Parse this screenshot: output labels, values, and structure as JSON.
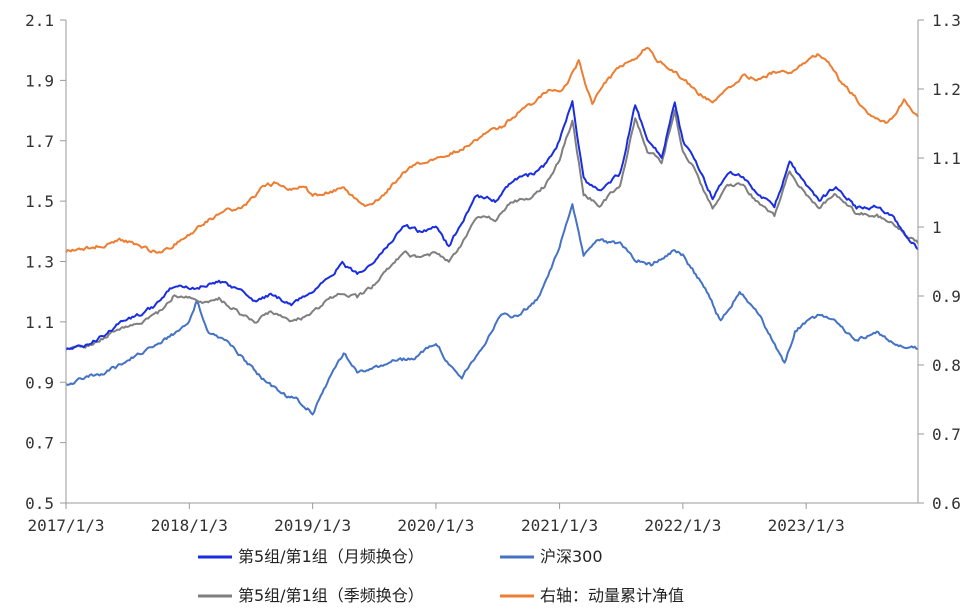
{
  "chart_data": {
    "type": "line",
    "x_ticks": [
      "2017/1/3",
      "2018/1/3",
      "2019/1/3",
      "2020/1/3",
      "2021/1/3",
      "2022/1/3",
      "2023/1/3"
    ],
    "x_range": [
      "2017/1/3",
      "2023/11/30"
    ],
    "y_left": {
      "range": [
        0.5,
        2.1
      ],
      "ticks": [
        "0.5",
        "0.7",
        "0.9",
        "1.1",
        "1.3",
        "1.5",
        "1.7",
        "1.9",
        "2.1"
      ]
    },
    "y_right": {
      "range": [
        0.6,
        1.3
      ],
      "ticks": [
        "0.6",
        "0.7",
        "0.8",
        "0.9",
        "1",
        "1.1",
        "1.2",
        "1.3"
      ]
    },
    "grid": false,
    "legend_position": "bottom",
    "series": [
      {
        "name": "第5组/第1组（月频换仓）",
        "axis": "left",
        "color": "#1a2ee0",
        "points": [
          [
            "2017-01-03",
            1.01
          ],
          [
            "2017-03-01",
            1.02
          ],
          [
            "2017-05-01",
            1.06
          ],
          [
            "2017-06-15",
            1.1
          ],
          [
            "2017-08-01",
            1.12
          ],
          [
            "2017-10-01",
            1.16
          ],
          [
            "2017-11-20",
            1.22
          ],
          [
            "2018-01-03",
            1.21
          ],
          [
            "2018-02-15",
            1.22
          ],
          [
            "2018-04-01",
            1.23
          ],
          [
            "2018-06-01",
            1.21
          ],
          [
            "2018-07-15",
            1.17
          ],
          [
            "2018-09-01",
            1.19
          ],
          [
            "2018-11-01",
            1.16
          ],
          [
            "2019-01-03",
            1.2
          ],
          [
            "2019-02-15",
            1.25
          ],
          [
            "2019-04-01",
            1.29
          ],
          [
            "2019-05-15",
            1.26
          ],
          [
            "2019-07-01",
            1.3
          ],
          [
            "2019-08-20",
            1.36
          ],
          [
            "2019-10-01",
            1.42
          ],
          [
            "2019-11-15",
            1.4
          ],
          [
            "2020-01-03",
            1.41
          ],
          [
            "2020-02-10",
            1.35
          ],
          [
            "2020-03-20",
            1.43
          ],
          [
            "2020-05-01",
            1.52
          ],
          [
            "2020-07-01",
            1.5
          ],
          [
            "2020-08-15",
            1.57
          ],
          [
            "2020-10-01",
            1.58
          ],
          [
            "2020-11-20",
            1.62
          ],
          [
            "2021-01-03",
            1.7
          ],
          [
            "2021-02-10",
            1.83
          ],
          [
            "2021-03-15",
            1.57
          ],
          [
            "2021-05-01",
            1.53
          ],
          [
            "2021-07-01",
            1.59
          ],
          [
            "2021-08-15",
            1.82
          ],
          [
            "2021-09-20",
            1.7
          ],
          [
            "2021-11-01",
            1.65
          ],
          [
            "2021-12-10",
            1.83
          ],
          [
            "2022-01-03",
            1.7
          ],
          [
            "2022-02-15",
            1.62
          ],
          [
            "2022-04-01",
            1.51
          ],
          [
            "2022-05-15",
            1.6
          ],
          [
            "2022-07-01",
            1.58
          ],
          [
            "2022-08-15",
            1.52
          ],
          [
            "2022-10-01",
            1.48
          ],
          [
            "2022-11-15",
            1.63
          ],
          [
            "2023-01-03",
            1.55
          ],
          [
            "2023-02-10",
            1.5
          ],
          [
            "2023-04-01",
            1.55
          ],
          [
            "2023-06-01",
            1.48
          ],
          [
            "2023-08-01",
            1.48
          ],
          [
            "2023-09-15",
            1.45
          ],
          [
            "2023-11-01",
            1.38
          ],
          [
            "2023-11-30",
            1.34
          ]
        ]
      },
      {
        "name": "沪深300",
        "axis": "left",
        "color": "#4472c4",
        "points": [
          [
            "2017-01-03",
            0.89
          ],
          [
            "2017-03-01",
            0.92
          ],
          [
            "2017-05-01",
            0.93
          ],
          [
            "2017-07-01",
            0.97
          ],
          [
            "2017-09-01",
            1.01
          ],
          [
            "2017-11-20",
            1.06
          ],
          [
            "2018-01-03",
            1.1
          ],
          [
            "2018-01-25",
            1.17
          ],
          [
            "2018-03-01",
            1.06
          ],
          [
            "2018-05-01",
            1.03
          ],
          [
            "2018-06-20",
            0.97
          ],
          [
            "2018-08-01",
            0.92
          ],
          [
            "2018-10-01",
            0.86
          ],
          [
            "2018-11-20",
            0.84
          ],
          [
            "2019-01-03",
            0.8
          ],
          [
            "2019-02-15",
            0.9
          ],
          [
            "2019-04-05",
            1.0
          ],
          [
            "2019-05-15",
            0.93
          ],
          [
            "2019-07-01",
            0.95
          ],
          [
            "2019-09-01",
            0.97
          ],
          [
            "2019-11-01",
            0.98
          ],
          [
            "2020-01-03",
            1.03
          ],
          [
            "2020-02-05",
            0.97
          ],
          [
            "2020-03-20",
            0.92
          ],
          [
            "2020-05-01",
            0.98
          ],
          [
            "2020-07-10",
            1.12
          ],
          [
            "2020-09-01",
            1.12
          ],
          [
            "2020-11-01",
            1.18
          ],
          [
            "2021-01-03",
            1.35
          ],
          [
            "2021-02-10",
            1.49
          ],
          [
            "2021-03-15",
            1.32
          ],
          [
            "2021-05-01",
            1.37
          ],
          [
            "2021-07-01",
            1.36
          ],
          [
            "2021-08-15",
            1.31
          ],
          [
            "2021-10-01",
            1.29
          ],
          [
            "2021-12-10",
            1.34
          ],
          [
            "2022-01-03",
            1.32
          ],
          [
            "2022-03-15",
            1.2
          ],
          [
            "2022-04-25",
            1.1
          ],
          [
            "2022-06-20",
            1.2
          ],
          [
            "2022-08-15",
            1.13
          ],
          [
            "2022-10-31",
            0.96
          ],
          [
            "2022-12-01",
            1.07
          ],
          [
            "2023-01-03",
            1.1
          ],
          [
            "2023-02-10",
            1.12
          ],
          [
            "2023-04-01",
            1.1
          ],
          [
            "2023-06-01",
            1.04
          ],
          [
            "2023-07-31",
            1.07
          ],
          [
            "2023-09-15",
            1.03
          ],
          [
            "2023-11-30",
            1.01
          ]
        ]
      },
      {
        "name": "第5组/第1组（季频换仓）",
        "axis": "left",
        "color": "#7f7f7f",
        "points": [
          [
            "2017-01-03",
            1.01
          ],
          [
            "2017-03-01",
            1.02
          ],
          [
            "2017-05-01",
            1.05
          ],
          [
            "2017-06-15",
            1.08
          ],
          [
            "2017-08-01",
            1.09
          ],
          [
            "2017-10-01",
            1.13
          ],
          [
            "2017-11-20",
            1.19
          ],
          [
            "2018-01-03",
            1.18
          ],
          [
            "2018-02-15",
            1.16
          ],
          [
            "2018-04-01",
            1.18
          ],
          [
            "2018-06-01",
            1.13
          ],
          [
            "2018-07-15",
            1.1
          ],
          [
            "2018-09-01",
            1.13
          ],
          [
            "2018-11-01",
            1.1
          ],
          [
            "2019-01-03",
            1.13
          ],
          [
            "2019-02-15",
            1.17
          ],
          [
            "2019-04-01",
            1.2
          ],
          [
            "2019-05-15",
            1.18
          ],
          [
            "2019-07-01",
            1.22
          ],
          [
            "2019-08-20",
            1.28
          ],
          [
            "2019-10-01",
            1.33
          ],
          [
            "2019-11-15",
            1.31
          ],
          [
            "2020-01-03",
            1.33
          ],
          [
            "2020-02-10",
            1.3
          ],
          [
            "2020-03-20",
            1.36
          ],
          [
            "2020-05-01",
            1.45
          ],
          [
            "2020-07-01",
            1.44
          ],
          [
            "2020-08-15",
            1.5
          ],
          [
            "2020-10-01",
            1.51
          ],
          [
            "2020-11-20",
            1.55
          ],
          [
            "2021-01-03",
            1.64
          ],
          [
            "2021-02-10",
            1.77
          ],
          [
            "2021-03-15",
            1.52
          ],
          [
            "2021-05-01",
            1.49
          ],
          [
            "2021-07-01",
            1.55
          ],
          [
            "2021-08-15",
            1.78
          ],
          [
            "2021-09-20",
            1.67
          ],
          [
            "2021-11-01",
            1.63
          ],
          [
            "2021-12-10",
            1.8
          ],
          [
            "2022-01-03",
            1.67
          ],
          [
            "2022-02-15",
            1.59
          ],
          [
            "2022-04-01",
            1.47
          ],
          [
            "2022-05-15",
            1.56
          ],
          [
            "2022-07-01",
            1.55
          ],
          [
            "2022-08-15",
            1.49
          ],
          [
            "2022-10-01",
            1.45
          ],
          [
            "2022-11-15",
            1.6
          ],
          [
            "2023-01-03",
            1.52
          ],
          [
            "2023-02-10",
            1.48
          ],
          [
            "2023-04-01",
            1.52
          ],
          [
            "2023-06-01",
            1.46
          ],
          [
            "2023-08-01",
            1.45
          ],
          [
            "2023-09-15",
            1.43
          ],
          [
            "2023-11-01",
            1.38
          ],
          [
            "2023-11-30",
            1.36
          ]
        ]
      },
      {
        "name": "右轴：动量累计净值",
        "axis": "right",
        "color": "#ed7d31",
        "points": [
          [
            "2017-01-03",
            0.965
          ],
          [
            "2017-03-01",
            0.97
          ],
          [
            "2017-05-01",
            0.975
          ],
          [
            "2017-06-15",
            0.98
          ],
          [
            "2017-08-01",
            0.975
          ],
          [
            "2017-10-01",
            0.963
          ],
          [
            "2017-11-20",
            0.975
          ],
          [
            "2018-01-03",
            0.99
          ],
          [
            "2018-03-01",
            1.01
          ],
          [
            "2018-05-01",
            1.025
          ],
          [
            "2018-06-20",
            1.03
          ],
          [
            "2018-08-01",
            1.055
          ],
          [
            "2018-09-20",
            1.065
          ],
          [
            "2018-11-01",
            1.055
          ],
          [
            "2018-12-10",
            1.06
          ],
          [
            "2019-01-03",
            1.045
          ],
          [
            "2019-02-20",
            1.05
          ],
          [
            "2019-04-01",
            1.058
          ],
          [
            "2019-05-15",
            1.04
          ],
          [
            "2019-06-20",
            1.03
          ],
          [
            "2019-08-01",
            1.045
          ],
          [
            "2019-09-20",
            1.075
          ],
          [
            "2019-11-01",
            1.09
          ],
          [
            "2020-01-03",
            1.1
          ],
          [
            "2020-03-01",
            1.11
          ],
          [
            "2020-04-15",
            1.12
          ],
          [
            "2020-06-01",
            1.135
          ],
          [
            "2020-07-15",
            1.145
          ],
          [
            "2020-09-01",
            1.165
          ],
          [
            "2020-10-20",
            1.18
          ],
          [
            "2020-12-01",
            1.2
          ],
          [
            "2021-01-03",
            1.195
          ],
          [
            "2021-02-01",
            1.215
          ],
          [
            "2021-03-01",
            1.24
          ],
          [
            "2021-03-20",
            1.21
          ],
          [
            "2021-04-10",
            1.18
          ],
          [
            "2021-05-15",
            1.21
          ],
          [
            "2021-07-01",
            1.23
          ],
          [
            "2021-08-15",
            1.245
          ],
          [
            "2021-09-20",
            1.26
          ],
          [
            "2021-10-20",
            1.24
          ],
          [
            "2021-12-01",
            1.23
          ],
          [
            "2022-01-03",
            1.215
          ],
          [
            "2022-02-15",
            1.195
          ],
          [
            "2022-04-01",
            1.18
          ],
          [
            "2022-05-15",
            1.2
          ],
          [
            "2022-07-01",
            1.22
          ],
          [
            "2022-08-15",
            1.215
          ],
          [
            "2022-10-01",
            1.225
          ],
          [
            "2022-11-15",
            1.225
          ],
          [
            "2023-01-03",
            1.24
          ],
          [
            "2023-02-10",
            1.25
          ],
          [
            "2023-03-15",
            1.235
          ],
          [
            "2023-04-15",
            1.21
          ],
          [
            "2023-06-01",
            1.185
          ],
          [
            "2023-07-01",
            1.165
          ],
          [
            "2023-08-01",
            1.155
          ],
          [
            "2023-08-31",
            1.15
          ],
          [
            "2023-10-01",
            1.17
          ],
          [
            "2023-10-20",
            1.185
          ],
          [
            "2023-11-10",
            1.17
          ],
          [
            "2023-11-30",
            1.16
          ]
        ]
      }
    ]
  }
}
